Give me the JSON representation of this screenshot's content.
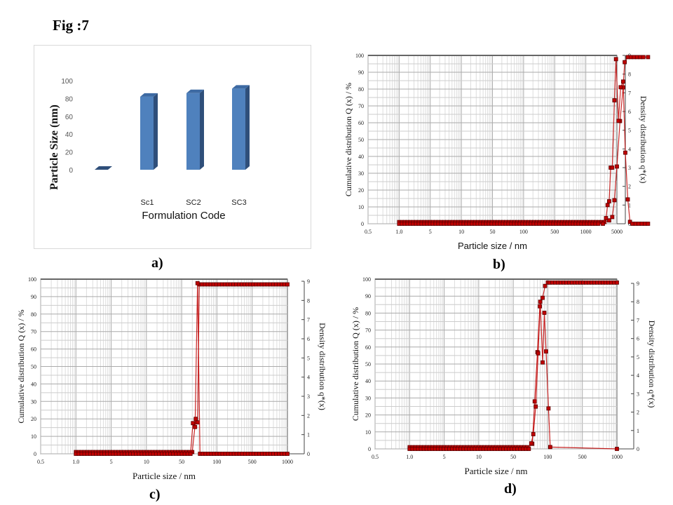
{
  "figure_title": "Fig :7",
  "panel_labels": [
    "a)",
    "b)",
    "c)",
    "d)"
  ],
  "chart_data": [
    {
      "id": "a",
      "type": "bar",
      "title": "",
      "xlabel": "Formulation Code",
      "ylabel": "Particle Size (nm)",
      "categories": [
        "",
        "Sc1",
        "SC2",
        "SC3"
      ],
      "values": [
        0,
        82,
        86,
        91
      ],
      "yticks": [
        0,
        20,
        40,
        60,
        80,
        100
      ],
      "ylim": [
        0,
        100
      ],
      "bar_color": "#4f81bd",
      "bar_side_color": "#2f4f7a",
      "style": "3d-column"
    },
    {
      "id": "b",
      "type": "scatter",
      "xlabel": "Particle size / nm",
      "ylabel": "Cumulative distribution Q (x) / %",
      "y2label": "Density distribution q*(x)",
      "xscale": "log",
      "xticks": [
        "0.5",
        "1.0",
        "5",
        "10",
        "50",
        "100",
        "500",
        "1000",
        "5000"
      ],
      "yticks": [
        0,
        10,
        20,
        30,
        40,
        50,
        60,
        70,
        80,
        90,
        100
      ],
      "y2ticks": [
        0,
        1,
        2,
        3,
        4,
        5,
        6,
        7,
        8,
        9
      ],
      "grid": true,
      "series_color": "#c00000",
      "series": [
        {
          "name": "Cumulative Q(x)",
          "axis": "left",
          "x_tick_pos": [
            1.0,
            7.6,
            7.75,
            7.85,
            7.92,
            8.0,
            8.1,
            8.2,
            8.25,
            8.35,
            8.45,
            8.55,
            8.65,
            8.75,
            8.85,
            9.0
          ],
          "values": [
            1,
            1,
            2,
            4,
            14,
            34,
            61,
            81,
            96,
            99,
            99,
            99,
            99,
            99,
            99,
            99
          ]
        },
        {
          "name": "Density q*(x)",
          "axis": "right",
          "x_tick_pos": [
            1.0,
            7.4,
            7.55,
            7.65,
            7.7,
            7.75,
            7.8,
            7.85,
            7.92,
            7.97,
            8.05,
            8.12,
            8.2,
            8.27,
            8.35,
            8.42,
            8.5,
            9.0
          ],
          "values": [
            0,
            0,
            0,
            0.3,
            1.0,
            1.2,
            3.0,
            3.0,
            6.6,
            8.8,
            5.5,
            7.3,
            7.6,
            3.8,
            1.3,
            0.1,
            0,
            0
          ]
        }
      ]
    },
    {
      "id": "c",
      "type": "scatter",
      "xlabel": "Particle size / nm",
      "ylabel": "Cumulative distribution Q (x) / %",
      "y2label": "Density distribution q*(x)",
      "xscale": "log",
      "xticks": [
        "0.5",
        "1.0",
        "5",
        "10",
        "50",
        "100",
        "500",
        "1000"
      ],
      "yticks": [
        0,
        10,
        20,
        30,
        40,
        50,
        60,
        70,
        80,
        90,
        100
      ],
      "y2ticks": [
        0,
        1,
        2,
        3,
        4,
        5,
        6,
        7,
        8,
        9
      ],
      "grid": true,
      "series_color": "#c00000",
      "series": [
        {
          "name": "Cumulative Q(x)",
          "axis": "left",
          "x_tick_pos": [
            1.0,
            4.3,
            4.4,
            4.45,
            4.5,
            7.0
          ],
          "values": [
            1,
            1,
            20,
            18,
            97,
            97
          ]
        },
        {
          "name": "Density q*(x)",
          "axis": "right",
          "x_tick_pos": [
            1.0,
            4.25,
            4.32,
            4.38,
            4.45,
            4.52,
            7.0
          ],
          "values": [
            0,
            0,
            1.6,
            1.4,
            8.9,
            0,
            0
          ]
        }
      ]
    },
    {
      "id": "d",
      "type": "scatter",
      "xlabel": "Particle size / nm",
      "ylabel": "Cumulative distribution Q (x) / %",
      "y2label": "Density distribution q*(x)",
      "xscale": "log",
      "xticks": [
        "0.5",
        "1.0",
        "5",
        "10",
        "50",
        "100",
        "500",
        "1000"
      ],
      "yticks": [
        0,
        10,
        20,
        30,
        40,
        50,
        60,
        70,
        80,
        90,
        100
      ],
      "y2ticks": [
        0,
        1,
        2,
        3,
        4,
        5,
        6,
        7,
        8,
        9
      ],
      "grid": true,
      "series_color": "#c00000",
      "series": [
        {
          "name": "Cumulative Q(x)",
          "axis": "left",
          "x_tick_pos": [
            1.0,
            3.5,
            4.4,
            4.55,
            4.62,
            4.7,
            4.77,
            4.85,
            4.92,
            5.0,
            5.05,
            7.0
          ],
          "values": [
            1,
            1,
            1,
            3,
            28,
            57,
            84,
            89,
            96,
            98,
            98,
            98
          ]
        },
        {
          "name": "Density q*(x)",
          "axis": "right",
          "x_tick_pos": [
            1.0,
            4.45,
            4.52,
            4.58,
            4.65,
            4.72,
            4.78,
            4.85,
            4.9,
            4.95,
            5.02,
            5.07,
            7.0
          ],
          "values": [
            0,
            0,
            0.3,
            0.8,
            2.3,
            5.2,
            8.0,
            4.7,
            7.4,
            5.3,
            2.2,
            0.1,
            0
          ]
        }
      ]
    }
  ]
}
